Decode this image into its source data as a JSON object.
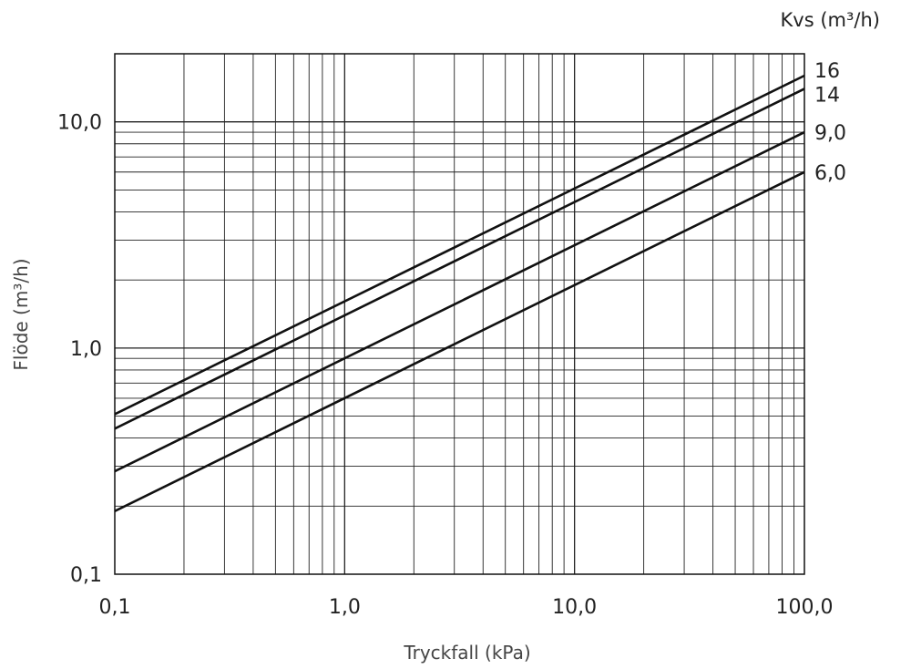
{
  "chart_data": {
    "type": "line",
    "title": "",
    "xlabel": "Tryckfall (kPa)",
    "ylabel": "Flöde  (m³/h)",
    "x_scale": "log",
    "y_scale": "log",
    "xlim": [
      0.1,
      100
    ],
    "ylim": [
      0.1,
      20
    ],
    "x_ticks": [
      {
        "value": 0.1,
        "label": "0,1"
      },
      {
        "value": 1,
        "label": "1,0"
      },
      {
        "value": 10,
        "label": "10,0"
      },
      {
        "value": 100,
        "label": "100,0"
      }
    ],
    "y_ticks": [
      {
        "value": 0.1,
        "label": "0,1"
      },
      {
        "value": 1,
        "label": "1,0"
      },
      {
        "value": 10,
        "label": "10,0"
      }
    ],
    "grid": true,
    "legend_title": "Kvs (m³/h)",
    "legend_placement": "right",
    "line_color": "#111111",
    "grid_color": "#222222",
    "series": [
      {
        "name": "16",
        "x": [
          0.1,
          100
        ],
        "y": [
          0.51,
          16
        ]
      },
      {
        "name": "14",
        "x": [
          0.1,
          100
        ],
        "y": [
          0.44,
          14
        ]
      },
      {
        "name": "9,0",
        "x": [
          0.1,
          100
        ],
        "y": [
          0.285,
          9.0
        ]
      },
      {
        "name": "6,0",
        "x": [
          0.1,
          100
        ],
        "y": [
          0.19,
          6.0
        ]
      }
    ]
  }
}
